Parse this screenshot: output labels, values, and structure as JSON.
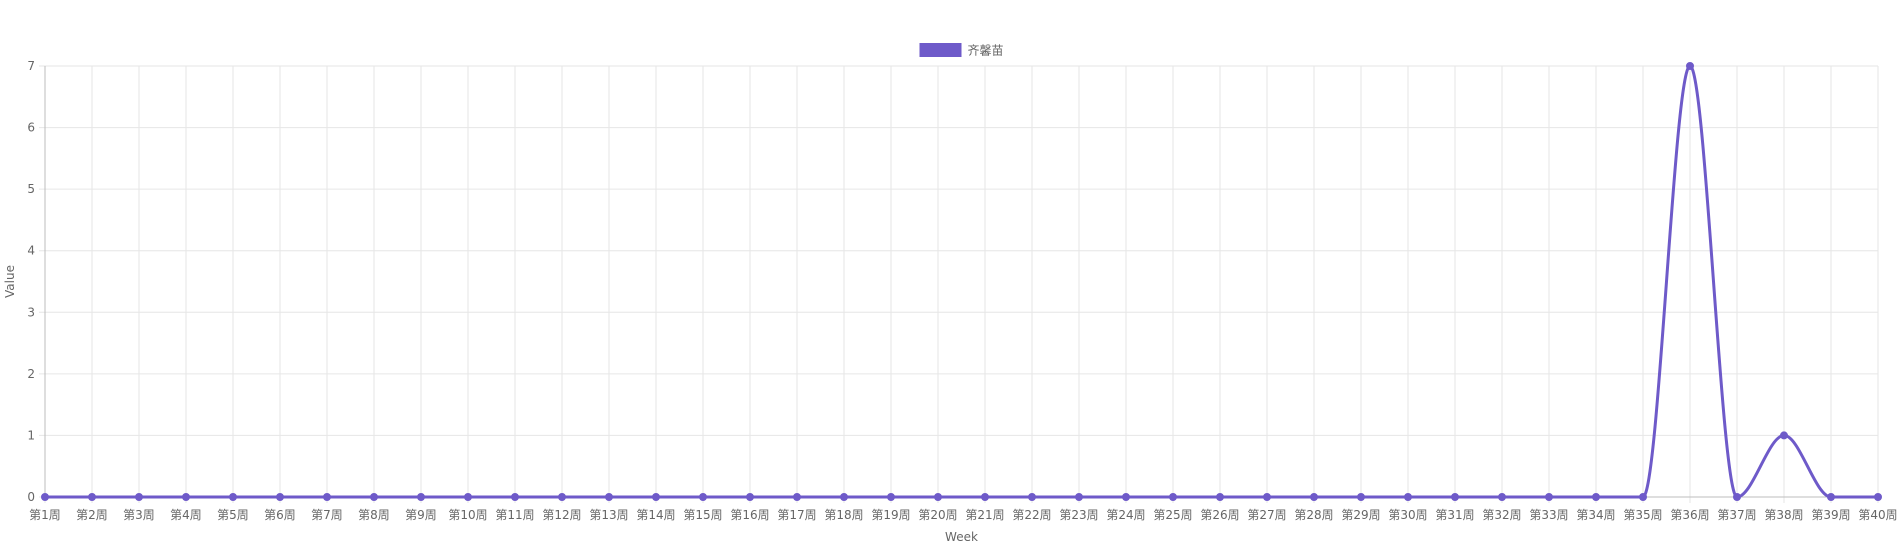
{
  "chart_data": {
    "type": "line",
    "xlabel": "Week",
    "ylabel": "Value",
    "ylim": [
      0,
      7
    ],
    "y_ticks": [
      0,
      1,
      2,
      3,
      4,
      5,
      6,
      7
    ],
    "grid": true,
    "legend_position": "top-center",
    "categories": [
      "第1周",
      "第2周",
      "第3周",
      "第4周",
      "第5周",
      "第6周",
      "第7周",
      "第8周",
      "第9周",
      "第10周",
      "第11周",
      "第12周",
      "第13周",
      "第14周",
      "第15周",
      "第16周",
      "第17周",
      "第18周",
      "第19周",
      "第20周",
      "第21周",
      "第22周",
      "第23周",
      "第24周",
      "第25周",
      "第26周",
      "第27周",
      "第28周",
      "第29周",
      "第30周",
      "第31周",
      "第32周",
      "第33周",
      "第34周",
      "第35周",
      "第36周",
      "第37周",
      "第38周",
      "第39周",
      "第40周"
    ],
    "series": [
      {
        "name": "齐馨苗",
        "color": "#6e5ac9",
        "values": [
          0,
          0,
          0,
          0,
          0,
          0,
          0,
          0,
          0,
          0,
          0,
          0,
          0,
          0,
          0,
          0,
          0,
          0,
          0,
          0,
          0,
          0,
          0,
          0,
          0,
          0,
          0,
          0,
          0,
          0,
          0,
          0,
          0,
          0,
          0,
          7,
          0,
          1,
          0,
          0
        ]
      }
    ]
  }
}
